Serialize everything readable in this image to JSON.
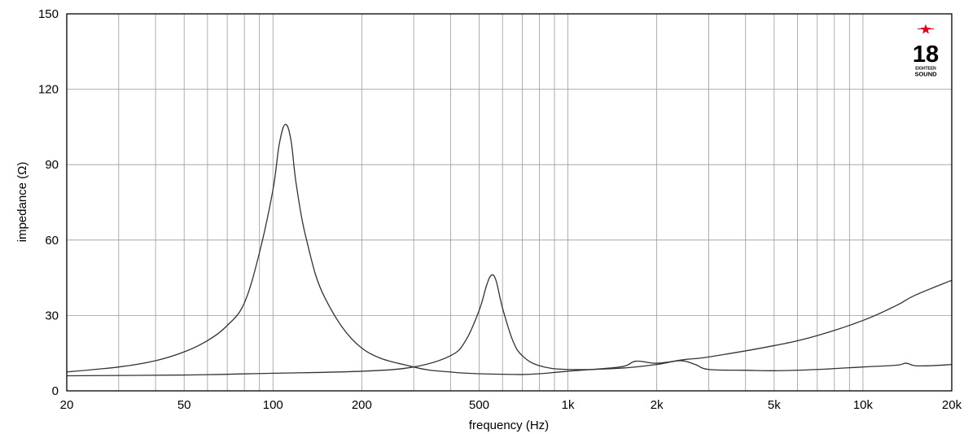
{
  "chart_data": {
    "type": "line",
    "xlabel": "frequency (Hz)",
    "ylabel": "impedance (Ω)",
    "xscale": "log",
    "xlim": [
      20,
      20000
    ],
    "ylim": [
      0,
      150
    ],
    "grid": true,
    "x_tick_values": [
      20,
      50,
      100,
      200,
      500,
      1000,
      2000,
      5000,
      10000,
      20000
    ],
    "x_tick_labels": [
      "20",
      "50",
      "100",
      "200",
      "500",
      "1k",
      "2k",
      "5k",
      "10k",
      "20k"
    ],
    "y_ticks": [
      0,
      30,
      60,
      90,
      120,
      150
    ],
    "series": [
      {
        "color": "#333333",
        "x": [
          20,
          30,
          40,
          50,
          60,
          70,
          80,
          90,
          100,
          105,
          110,
          115,
          120,
          130,
          150,
          200,
          300,
          400,
          500,
          600,
          700,
          800,
          1000,
          1500,
          1700,
          2000,
          2500,
          3000,
          5000,
          7000,
          10000,
          13000,
          15000,
          20000
        ],
        "y": [
          7.5,
          9.5,
          12,
          15.5,
          20,
          26,
          35,
          55,
          80,
          98,
          106,
          100,
          82,
          60,
          37,
          17,
          9.5,
          7.5,
          6.8,
          6.6,
          6.5,
          6.8,
          7.8,
          9.5,
          11.8,
          11,
          12.5,
          13.5,
          18,
          22,
          28,
          34,
          38,
          44
        ]
      },
      {
        "color": "#333333",
        "x": [
          20,
          50,
          100,
          200,
          300,
          400,
          450,
          500,
          530,
          550,
          570,
          600,
          650,
          700,
          800,
          1000,
          1500,
          2000,
          2400,
          2700,
          3000,
          4000,
          5000,
          7000,
          10000,
          13000,
          14000,
          15000,
          17000,
          20000
        ],
        "y": [
          6,
          6.3,
          7,
          7.8,
          9.5,
          14,
          20,
          32,
          42,
          46,
          44,
          33,
          20,
          14,
          10,
          8.5,
          9,
          10.5,
          12,
          10.5,
          8.5,
          8.2,
          8,
          8.5,
          9.5,
          10.2,
          11,
          10,
          10,
          10.5
        ]
      }
    ]
  },
  "logo": {
    "number": "18",
    "line1": "EIGHTEEN",
    "line2": "SOUND",
    "star_color": "#e3001b"
  }
}
